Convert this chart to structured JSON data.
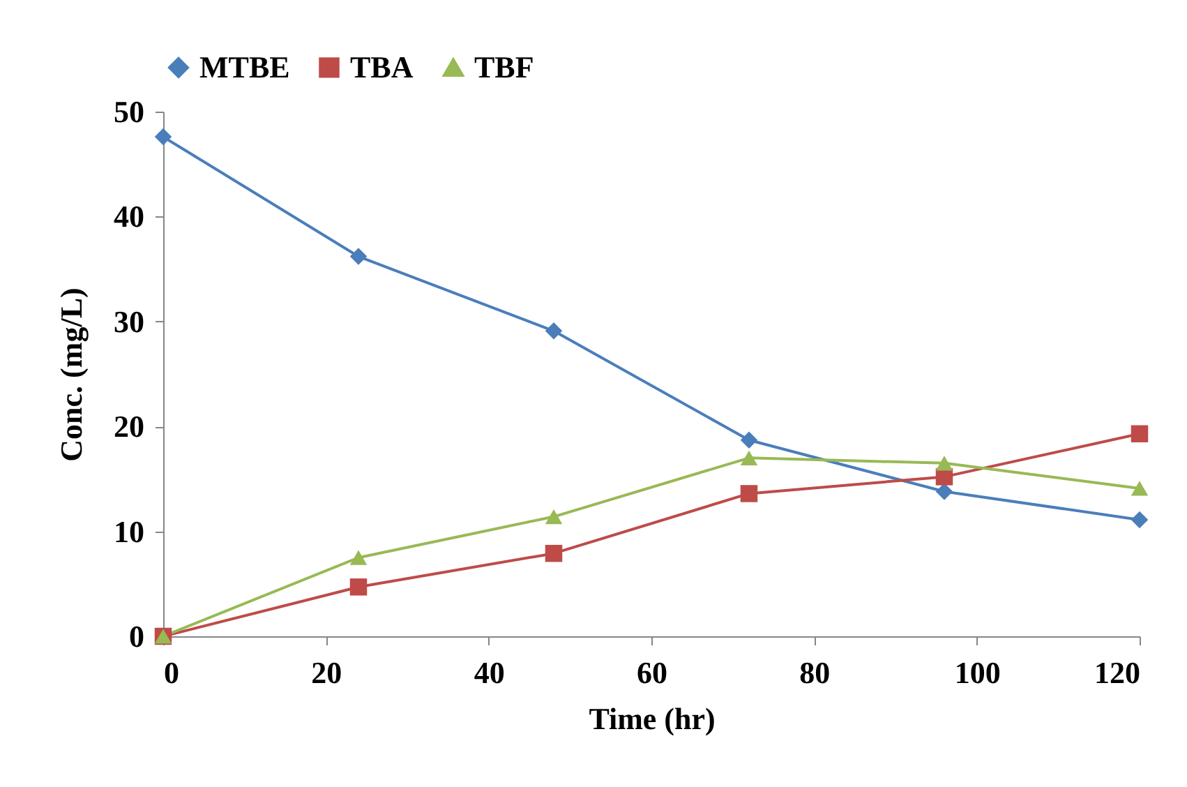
{
  "chart_data": {
    "type": "line",
    "xlabel": "Time (hr)",
    "ylabel": "Conc. (mg/L)",
    "x": [
      0,
      24,
      48,
      72,
      96,
      120
    ],
    "xlim": [
      0,
      120
    ],
    "xticks": [
      0,
      20,
      40,
      60,
      80,
      100,
      120
    ],
    "ylim": [
      0,
      50
    ],
    "yticks": [
      0,
      10,
      20,
      30,
      40,
      50
    ],
    "grid": false,
    "legend": "top",
    "series": [
      {
        "name": "MTBE",
        "color": "#4a7ebb",
        "marker": "diamond",
        "values": [
          47.6,
          36.2,
          29.1,
          18.7,
          13.8,
          11.1
        ]
      },
      {
        "name": "TBA",
        "color": "#be4b48",
        "marker": "square",
        "values": [
          0,
          4.7,
          7.9,
          13.6,
          15.2,
          19.3
        ]
      },
      {
        "name": "TBF",
        "color": "#98b954",
        "marker": "triangle",
        "values": [
          0,
          7.5,
          11.4,
          17.0,
          16.5,
          14.1
        ]
      }
    ]
  }
}
